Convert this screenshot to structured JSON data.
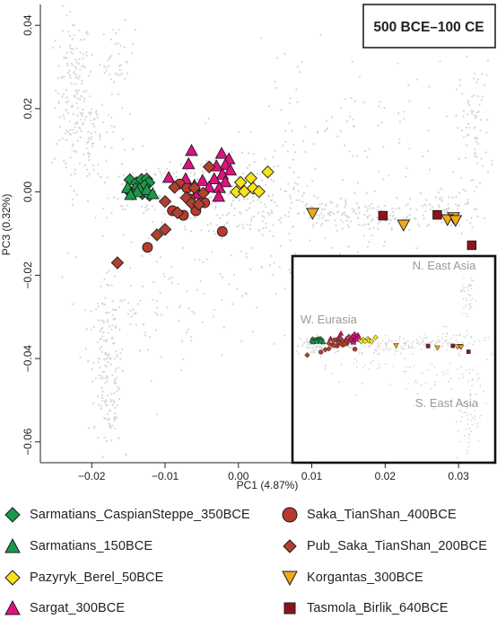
{
  "chart_data": {
    "type": "scatter",
    "title": "500 BCE–100 CE",
    "xlabel": "PC1 (4.87%)",
    "ylabel": "PC3 (0.32%)",
    "xlim": [
      -0.027,
      0.035
    ],
    "ylim": [
      -0.065,
      0.045
    ],
    "xticks": [
      -0.02,
      -0.01,
      0.0,
      0.01,
      0.02,
      0.03
    ],
    "xtick_labels": [
      "−0.02",
      "−0.01",
      "0.00",
      "0.01",
      "0.02",
      "0.03"
    ],
    "yticks": [
      0.04,
      0.02,
      0.0,
      -0.02,
      -0.04,
      -0.06
    ],
    "ytick_labels": [
      "0.04",
      "0.02",
      "0.00",
      "−0.02",
      "−0.04",
      "−0.06"
    ],
    "grid": false,
    "legend_position": "below",
    "background_color": "#d6d6d6",
    "series": [
      {
        "name": "Sarmatians_CaspianSteppe_350BCE",
        "marker": "diamond",
        "color": "#1a9a4a",
        "points": [
          [
            -0.0148,
            0.0029
          ],
          [
            -0.0139,
            0.0022
          ],
          [
            -0.0132,
            0.003
          ],
          [
            -0.0125,
            0.0031
          ],
          [
            -0.0122,
            0.0022
          ],
          [
            -0.0128,
            0.0015
          ],
          [
            -0.014,
            0.0008
          ],
          [
            -0.015,
            0.0003
          ],
          [
            -0.0144,
            -0.0005
          ],
          [
            -0.0131,
            -0.0004
          ],
          [
            -0.0121,
            -0.0008
          ]
        ]
      },
      {
        "name": "Sarmatians_150BCE",
        "marker": "triangle-up",
        "color": "#1a9a4a",
        "points": [
          [
            -0.0151,
            0.0009
          ],
          [
            -0.0135,
            0.0007
          ],
          [
            -0.0125,
            0.0004
          ],
          [
            -0.0138,
            -0.0001
          ],
          [
            -0.0147,
            -0.0008
          ],
          [
            -0.0117,
            -0.0006
          ]
        ]
      },
      {
        "name": "Pazyryk_Berel_50BCE",
        "marker": "diamond",
        "color": "#f6e31a",
        "points": [
          [
            0.004,
            0.0048
          ],
          [
            0.0017,
            0.0033
          ],
          [
            0.0003,
            0.0023
          ],
          [
            0.002,
            0.0009
          ],
          [
            -0.0003,
            0.0
          ],
          [
            0.0008,
            0.0001
          ],
          [
            0.0028,
            0.0001
          ]
        ]
      },
      {
        "name": "Sargat_300BCE",
        "marker": "triangle-up",
        "color": "#e0117f",
        "points": [
          [
            -0.0064,
            0.0098
          ],
          [
            -0.0023,
            0.0091
          ],
          [
            -0.0013,
            0.0078
          ],
          [
            -0.0018,
            0.0064
          ],
          [
            -0.0068,
            0.0066
          ],
          [
            -0.003,
            0.0061
          ],
          [
            -0.0011,
            0.0051
          ],
          [
            -0.0022,
            0.0041
          ],
          [
            -0.0095,
            0.0033
          ],
          [
            -0.0072,
            0.003
          ],
          [
            -0.0049,
            0.0026
          ],
          [
            -0.0033,
            0.003
          ],
          [
            -0.0018,
            0.0023
          ],
          [
            -0.006,
            0.0014
          ],
          [
            -0.004,
            0.001
          ],
          [
            -0.0026,
            0.0009
          ],
          [
            -0.0057,
            -0.0005
          ],
          [
            -0.0027,
            -0.0012
          ]
        ]
      },
      {
        "name": "Saka_TianShan_400BCE",
        "marker": "circle",
        "color": "#b83a2e",
        "points": [
          [
            -0.008,
            0.0019
          ],
          [
            -0.007,
            0.0009
          ],
          [
            -0.0066,
            -0.0017
          ],
          [
            -0.0046,
            -0.0026
          ],
          [
            -0.0058,
            -0.0045
          ],
          [
            -0.0075,
            -0.0056
          ],
          [
            -0.009,
            -0.0045
          ],
          [
            -0.0022,
            -0.0095
          ],
          [
            -0.0124,
            -0.0133
          ]
        ]
      },
      {
        "name": "Pub_Saka_TianShan_200BCE",
        "marker": "diamond",
        "color": "#b0412f",
        "points": [
          [
            -0.004,
            0.006
          ],
          [
            -0.0087,
            0.0011
          ],
          [
            -0.006,
            0.001
          ],
          [
            -0.0048,
            -0.0003
          ],
          [
            -0.0071,
            -0.0014
          ],
          [
            -0.01,
            -0.0023
          ],
          [
            -0.0064,
            -0.0027
          ],
          [
            -0.0054,
            -0.003
          ],
          [
            -0.0083,
            -0.005
          ],
          [
            -0.01,
            -0.009
          ],
          [
            -0.0111,
            -0.0103
          ],
          [
            -0.0165,
            -0.017
          ]
        ]
      },
      {
        "name": "Korgantas_300BCE",
        "marker": "triangle-down",
        "color": "#f2a81d",
        "points": [
          [
            0.0101,
            -0.005
          ],
          [
            0.0225,
            -0.0078
          ],
          [
            0.0293,
            -0.006
          ],
          [
            0.0285,
            -0.0065
          ],
          [
            0.0296,
            -0.0067
          ]
        ]
      },
      {
        "name": "Tasmola_Birlik_640BCE",
        "marker": "square",
        "color": "#8e1419",
        "points": [
          [
            0.0197,
            -0.0057
          ],
          [
            0.0271,
            -0.0055
          ],
          [
            0.0318,
            -0.0128
          ]
        ]
      }
    ]
  },
  "inset": {
    "labels": {
      "ne_asia": "N. East Asia",
      "w_eurasia": "W. Eurasia",
      "se_asia": "S. East Asia"
    }
  }
}
